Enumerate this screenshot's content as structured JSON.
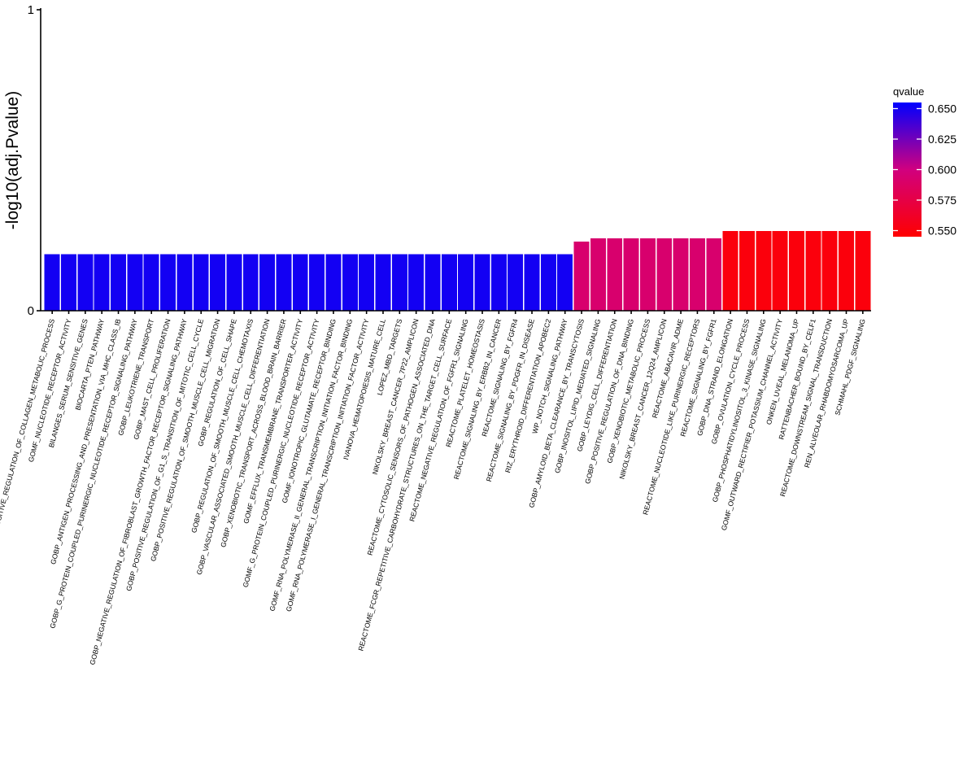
{
  "chart_data": {
    "type": "bar",
    "ylabel": "-log10(adj.Pvalue)",
    "xlabel": "",
    "ylim": [
      0,
      1
    ],
    "y_ticks": [
      "0",
      "1"
    ],
    "legend": {
      "title": "qvalue",
      "placement": "right",
      "range": [
        0.545,
        0.655
      ],
      "ticks": [
        0.65,
        0.625,
        0.6,
        0.575,
        0.55
      ],
      "tick_labels": [
        "0.650",
        "0.625",
        "0.600",
        "0.575",
        "0.550"
      ],
      "low_color": "#ff0000",
      "high_color": "#0000ff"
    },
    "categories": [
      "GOBP_POSITIVE_REGULATION_OF_COLLAGEN_METABOLIC_PROCESS",
      "GOMF_NUCLEOTIDE_RECEPTOR_ACTIVITY",
      "BILANGES_SERUM_SENSITIVE_GENES",
      "BIOCARTA_PTEN_PATHWAY",
      "GOBP_ANTIGEN_PROCESSING_AND_PRESENTATION_VIA_MHC_CLASS_IB",
      "GOBP_G_PROTEIN_COUPLED_PURINERGIC_NUCLEOTIDE_RECEPTOR_SIGNALING_PATHWAY",
      "GOBP_LEUKOTRIENE_TRANSPORT",
      "GOBP_MAST_CELL_PROLIFERATION",
      "GOBP_NEGATIVE_REGULATION_OF_FIBROBLAST_GROWTH_FACTOR_RECEPTOR_SIGNALING_PATHWAY",
      "GOBP_POSITIVE_REGULATION_OF_G1_S_TRANSITION_OF_MITOTIC_CELL_CYCLE",
      "GOBP_POSITIVE_REGULATION_OF_SMOOTH_MUSCLE_CELL_MIGRATION",
      "GOBP_REGULATION_OF_CELL_SHAPE",
      "GOBP_REGULATION_OF_SMOOTH_MUSCLE_CELL_CHEMOTAXIS",
      "GOBP_VASCULAR_ASSOCIATED_SMOOTH_MUSCLE_CELL_DIFFERENTIATION",
      "GOBP_XENOBIOTIC_TRANSPORT_ACROSS_BLOOD_BRAIN_BARRIER",
      "GOMF_EFFLUX_TRANSMEMBRANE_TRANSPORTER_ACTIVITY",
      "GOMF_G_PROTEIN_COUPLED_PURINERGIC_NUCLEOTIDE_RECEPTOR_ACTIVITY",
      "GOMF_IONOTROPIC_GLUTAMATE_RECEPTOR_BINDING",
      "GOMF_RNA_POLYMERASE_II_GENERAL_TRANSCRIPTION_INITIATION_FACTOR_BINDING",
      "GOMF_RNA_POLYMERASE_I_GENERAL_TRANSCRIPTION_INITIATION_FACTOR_ACTIVITY",
      "IVANOVA_HEMATOPOIESIS_MATURE_CELL",
      "LOPEZ_MBD_TARGETS",
      "NIKOLSKY_BREAST_CANCER_7P22_AMPLICON",
      "REACTOME_CYTOSOLIC_SENSORS_OF_PATHOGEN_ASSOCIATED_DNA",
      "REACTOME_FCGR_REPETITIVE_CARBOHYDRATE_STRUCTURES_ON_THE_TARGET_CELL_SURFACE",
      "REACTOME_NEGATIVE_REGULATION_OF_FGFR1_SIGNALING",
      "REACTOME_PLATELET_HOMEOSTASIS",
      "REACTOME_SIGNALING_BY_ERBB2_IN_CANCER",
      "REACTOME_SIGNALING_BY_FGFR4",
      "REACTOME_SIGNALING_BY_PDGFR_IN_DISEASE",
      "RIZ_ERYTHROID_DIFFERENTIATION_APOBEC2",
      "WP_NOTCH_SIGNALING_PATHWAY",
      "GOBP_AMYLOID_BETA_CLEARANCE_BY_TRANSCYTOSIS",
      "GOBP_INOSITOL_LIPID_MEDIATED_SIGNALING",
      "GOBP_LEYDIG_CELL_DIFFERENTIATION",
      "GOBP_POSITIVE_REGULATION_OF_DNA_BINDING",
      "GOBP_XENOBIOTIC_METABOLIC_PROCESS",
      "NIKOLSKY_BREAST_CANCER_12Q24_AMPLICON",
      "REACTOME_ABACAVIR_ADME",
      "REACTOME_NUCLEOTIDE_LIKE_PURINERGIC_RECEPTORS",
      "REACTOME_SIGNALING_BY_FGFR1",
      "GOBP_DNA_STRAND_ELONGATION",
      "GOBP_OVULATION_CYCLE_PROCESS",
      "GOBP_PHOSPHATIDYLINOSITOL_3_KINASE_SIGNALING",
      "GOMF_OUTWARD_RECTIFIER_POTASSIUM_CHANNEL_ACTIVITY",
      "ONKEN_UVEAL_MELANOMA_UP",
      "RATTENBACHER_BOUND_BY_CELF1",
      "REACTOME_DOWNSTREAM_SIGNAL_TRANSDUCTION",
      "REN_ALVEOLAR_RHABDOMYOSARCOMA_UP",
      "SCHMAHL_PDGF_SIGNALING"
    ],
    "values": [
      0.188,
      0.188,
      0.188,
      0.188,
      0.188,
      0.188,
      0.188,
      0.188,
      0.188,
      0.188,
      0.188,
      0.188,
      0.188,
      0.188,
      0.188,
      0.188,
      0.188,
      0.188,
      0.188,
      0.188,
      0.188,
      0.188,
      0.188,
      0.188,
      0.188,
      0.188,
      0.188,
      0.188,
      0.188,
      0.188,
      0.188,
      0.188,
      0.23,
      0.241,
      0.241,
      0.241,
      0.241,
      0.241,
      0.241,
      0.241,
      0.241,
      0.265,
      0.265,
      0.265,
      0.265,
      0.265,
      0.265,
      0.265,
      0.265,
      0.265
    ],
    "qvalues": [
      0.65,
      0.65,
      0.65,
      0.65,
      0.65,
      0.65,
      0.65,
      0.65,
      0.65,
      0.65,
      0.65,
      0.65,
      0.65,
      0.65,
      0.65,
      0.65,
      0.65,
      0.65,
      0.65,
      0.65,
      0.65,
      0.65,
      0.65,
      0.65,
      0.65,
      0.65,
      0.65,
      0.65,
      0.65,
      0.65,
      0.65,
      0.65,
      0.592,
      0.592,
      0.592,
      0.592,
      0.592,
      0.592,
      0.592,
      0.592,
      0.592,
      0.55,
      0.55,
      0.55,
      0.55,
      0.55,
      0.55,
      0.55,
      0.55,
      0.55
    ]
  }
}
